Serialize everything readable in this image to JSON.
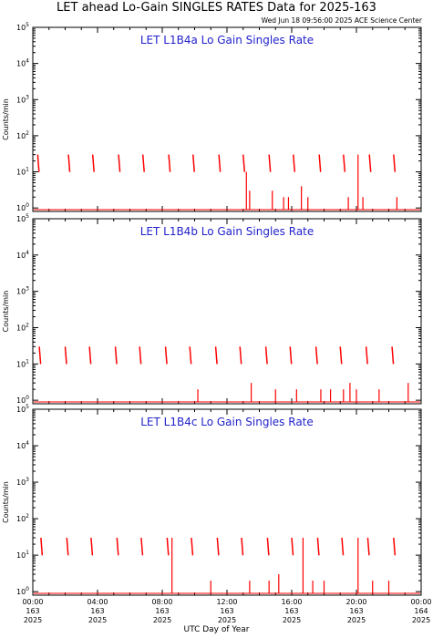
{
  "header": {
    "title": "LET ahead Lo-Gain SINGLES RATES Data for 2025-163",
    "timestamp": "Wed Jun 18 09:56:00 2025 ACE Science Center"
  },
  "colors": {
    "series": "#ff0000",
    "panel_title": "#2222cc",
    "axes": "#000000"
  },
  "chart_data": [
    {
      "type": "line",
      "title": "LET L1B4a Lo Gain Singles Rate",
      "ylabel": "Counts/min",
      "xlabel": "UTC Day of Year",
      "yscale": "log",
      "ylim": [
        0.8,
        100000
      ],
      "xlim": [
        0,
        24
      ],
      "y_ticks": [
        "10^0",
        "10^1",
        "10^2",
        "10^3",
        "10^4",
        "10^5"
      ],
      "grid": false,
      "series": [
        {
          "spikes": [
            {
              "t": 0.3,
              "v": 30
            },
            {
              "t": 2.2,
              "v": 30
            },
            {
              "t": 3.7,
              "v": 30
            },
            {
              "t": 5.3,
              "v": 30
            },
            {
              "t": 6.8,
              "v": 30
            },
            {
              "t": 8.4,
              "v": 30
            },
            {
              "t": 9.9,
              "v": 30
            },
            {
              "t": 11.5,
              "v": 30
            },
            {
              "t": 13.0,
              "v": 30
            },
            {
              "t": 14.6,
              "v": 30
            },
            {
              "t": 16.1,
              "v": 30
            },
            {
              "t": 17.7,
              "v": 30
            },
            {
              "t": 19.2,
              "v": 30
            },
            {
              "t": 20.8,
              "v": 30
            },
            {
              "t": 22.3,
              "v": 30
            }
          ],
          "bursts": [
            {
              "t": 13.2,
              "v": 10
            },
            {
              "t": 13.4,
              "v": 3
            },
            {
              "t": 14.8,
              "v": 3
            },
            {
              "t": 15.5,
              "v": 2
            },
            {
              "t": 15.8,
              "v": 2
            },
            {
              "t": 16.6,
              "v": 4
            },
            {
              "t": 17.0,
              "v": 2
            },
            {
              "t": 19.5,
              "v": 2
            },
            {
              "t": 20.1,
              "v": 30
            },
            {
              "t": 20.4,
              "v": 2
            },
            {
              "t": 22.5,
              "v": 2
            }
          ]
        }
      ]
    },
    {
      "type": "line",
      "title": "LET L1B4b Lo Gain Singles Rate",
      "ylabel": "Counts/min",
      "xlabel": "UTC Day of Year",
      "yscale": "log",
      "ylim": [
        0.8,
        100000
      ],
      "xlim": [
        0,
        24
      ],
      "y_ticks": [
        "10^0",
        "10^1",
        "10^2",
        "10^3",
        "10^4",
        "10^5"
      ],
      "grid": false,
      "series": [
        {
          "spikes": [
            {
              "t": 0.4,
              "v": 30
            },
            {
              "t": 2.0,
              "v": 30
            },
            {
              "t": 3.5,
              "v": 30
            },
            {
              "t": 5.1,
              "v": 30
            },
            {
              "t": 6.6,
              "v": 30
            },
            {
              "t": 8.2,
              "v": 30
            },
            {
              "t": 9.7,
              "v": 30
            },
            {
              "t": 11.3,
              "v": 30
            },
            {
              "t": 12.8,
              "v": 30
            },
            {
              "t": 14.4,
              "v": 30
            },
            {
              "t": 15.9,
              "v": 30
            },
            {
              "t": 17.5,
              "v": 30
            },
            {
              "t": 19.0,
              "v": 30
            },
            {
              "t": 20.6,
              "v": 30
            },
            {
              "t": 22.2,
              "v": 30
            }
          ],
          "bursts": [
            {
              "t": 10.2,
              "v": 2
            },
            {
              "t": 13.5,
              "v": 3
            },
            {
              "t": 15.0,
              "v": 2
            },
            {
              "t": 16.3,
              "v": 2
            },
            {
              "t": 17.8,
              "v": 2
            },
            {
              "t": 18.4,
              "v": 2
            },
            {
              "t": 19.2,
              "v": 2
            },
            {
              "t": 19.6,
              "v": 3
            },
            {
              "t": 20.0,
              "v": 2
            },
            {
              "t": 21.4,
              "v": 2
            },
            {
              "t": 23.2,
              "v": 3
            }
          ]
        }
      ]
    },
    {
      "type": "line",
      "title": "LET L1B4c Lo Gain Singles Rate",
      "ylabel": "Counts/min",
      "xlabel": "UTC Day of Year",
      "yscale": "log",
      "ylim": [
        0.8,
        100000
      ],
      "xlim": [
        0,
        24
      ],
      "y_ticks": [
        "10^0",
        "10^1",
        "10^2",
        "10^3",
        "10^4",
        "10^5"
      ],
      "grid": false,
      "series": [
        {
          "spikes": [
            {
              "t": 0.5,
              "v": 30
            },
            {
              "t": 2.1,
              "v": 30
            },
            {
              "t": 3.6,
              "v": 30
            },
            {
              "t": 5.2,
              "v": 30
            },
            {
              "t": 6.7,
              "v": 30
            },
            {
              "t": 8.3,
              "v": 30
            },
            {
              "t": 9.8,
              "v": 30
            },
            {
              "t": 11.4,
              "v": 30
            },
            {
              "t": 12.9,
              "v": 30
            },
            {
              "t": 14.5,
              "v": 30
            },
            {
              "t": 16.0,
              "v": 30
            },
            {
              "t": 17.6,
              "v": 30
            },
            {
              "t": 19.1,
              "v": 30
            },
            {
              "t": 20.7,
              "v": 30
            },
            {
              "t": 22.3,
              "v": 30
            }
          ],
          "bursts": [
            {
              "t": 8.6,
              "v": 30
            },
            {
              "t": 11.0,
              "v": 2
            },
            {
              "t": 13.4,
              "v": 2
            },
            {
              "t": 14.6,
              "v": 2
            },
            {
              "t": 15.2,
              "v": 3
            },
            {
              "t": 16.7,
              "v": 30
            },
            {
              "t": 17.3,
              "v": 2
            },
            {
              "t": 18.0,
              "v": 2
            },
            {
              "t": 20.1,
              "v": 30
            },
            {
              "t": 21.0,
              "v": 2
            },
            {
              "t": 22.0,
              "v": 2
            }
          ]
        }
      ]
    }
  ],
  "x_ticks": [
    {
      "time": "00:00",
      "doy": "163",
      "year": "2025"
    },
    {
      "time": "04:00",
      "doy": "163",
      "year": "2025"
    },
    {
      "time": "08:00",
      "doy": "163",
      "year": "2025"
    },
    {
      "time": "12:00",
      "doy": "163",
      "year": "2025"
    },
    {
      "time": "16:00",
      "doy": "163",
      "year": "2025"
    },
    {
      "time": "20:00",
      "doy": "163",
      "year": "2025"
    },
    {
      "time": "00:00",
      "doy": "164",
      "year": "2025"
    }
  ]
}
